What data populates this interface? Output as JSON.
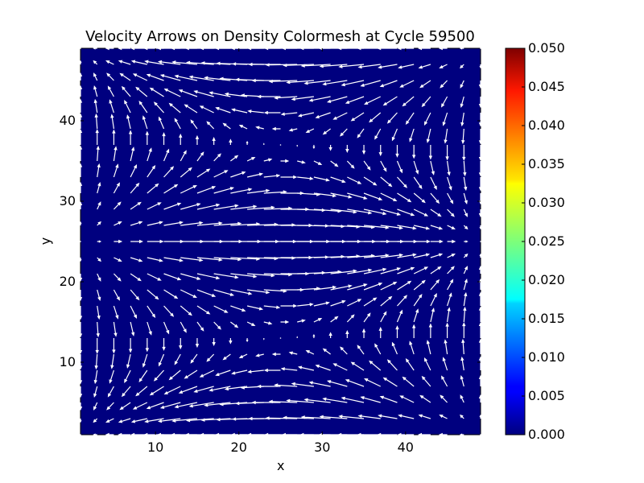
{
  "chart_data": {
    "type": "quiver",
    "title": "Velocity Arrows on Density Colormesh at Cycle 59500",
    "xlabel": "x",
    "ylabel": "y",
    "xlim": [
      1,
      49
    ],
    "ylim": [
      1,
      49
    ],
    "xticks": [
      10,
      20,
      30,
      40
    ],
    "yticks": [
      10,
      20,
      30,
      40
    ],
    "grid": false,
    "background_field": {
      "name": "density",
      "value_everywhere": 0.0,
      "colormap": "jet"
    },
    "colorbar": {
      "range": [
        0.0,
        0.05
      ],
      "ticks": [
        "0.000",
        "0.005",
        "0.010",
        "0.015",
        "0.020",
        "0.025",
        "0.030",
        "0.035",
        "0.040",
        "0.045",
        "0.050"
      ]
    },
    "vector_field": {
      "grid_x": "1,3,...,49",
      "grid_y": "1,3,...,49",
      "pattern": "double vortex: rightward jet along y=25, leftward flow at y~1 and y~49; upper vortex centered ~(25,37) counterclockwise, lower vortex centered ~(25,13) clockwise",
      "max_arrow_length_units": 4
    }
  },
  "colors": {
    "background_field": "#00007f",
    "arrows": "#ffffff"
  }
}
